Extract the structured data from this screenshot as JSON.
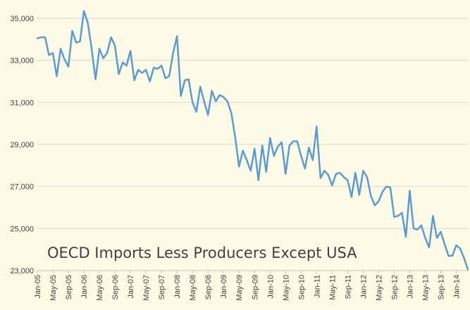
{
  "chart_data": {
    "type": "line",
    "title": "OECD Imports Less Producers Except USA",
    "xlabel": "",
    "ylabel": "",
    "ylim": [
      23000,
      35000
    ],
    "y_ticks": [
      "23,000",
      "25,000",
      "27,000",
      "29,000",
      "31,000",
      "33,000",
      "35,000"
    ],
    "x_tick_labels": [
      "Jan-05",
      "May-05",
      "Sep-05",
      "Jan-06",
      "May-06",
      "Sep-06",
      "Jan-07",
      "May-07",
      "Sep-07",
      "Jan-08",
      "May-08",
      "Sep-08",
      "Jan-09",
      "May-09",
      "Sep-09",
      "Jan-10",
      "May-10",
      "Sep-10",
      "Jan-11",
      "May-11",
      "Sep-11",
      "Jan-12",
      "May-12",
      "Sep-12",
      "Jan-13",
      "May-13",
      "Sep-13",
      "Jan-14"
    ],
    "grid": true,
    "series": [
      {
        "color": "#5b9bd5",
        "x_start": "Jan-05",
        "frequency": "monthly",
        "values": [
          34050,
          34100,
          34100,
          33250,
          33350,
          32250,
          33550,
          33050,
          32700,
          34400,
          33850,
          33900,
          35350,
          34800,
          33550,
          32100,
          33550,
          33100,
          33350,
          34100,
          33700,
          32350,
          32900,
          32750,
          33450,
          32050,
          32550,
          32400,
          32550,
          32000,
          32650,
          32600,
          32750,
          32150,
          32250,
          33350,
          34150,
          31300,
          32050,
          32100,
          31000,
          30550,
          31750,
          31050,
          30400,
          31550,
          31050,
          31350,
          31250,
          31050,
          30500,
          29350,
          27950,
          28700,
          28250,
          27750,
          28800,
          27300,
          28950,
          27700,
          29300,
          28450,
          28900,
          29100,
          27600,
          28950,
          29150,
          29150,
          28450,
          27850,
          28850,
          28250,
          29850,
          27400,
          27750,
          27550,
          27050,
          27600,
          27650,
          27450,
          27300,
          26500,
          27650,
          26600,
          27750,
          27450,
          26550,
          26100,
          26300,
          26750,
          27000,
          26950,
          25550,
          25600,
          25750,
          24600,
          26800,
          25000,
          24950,
          25150,
          24550,
          24100,
          25600,
          24550,
          24850,
          24250,
          23700,
          23700,
          24200,
          24050,
          23600,
          23050
        ]
      }
    ]
  }
}
